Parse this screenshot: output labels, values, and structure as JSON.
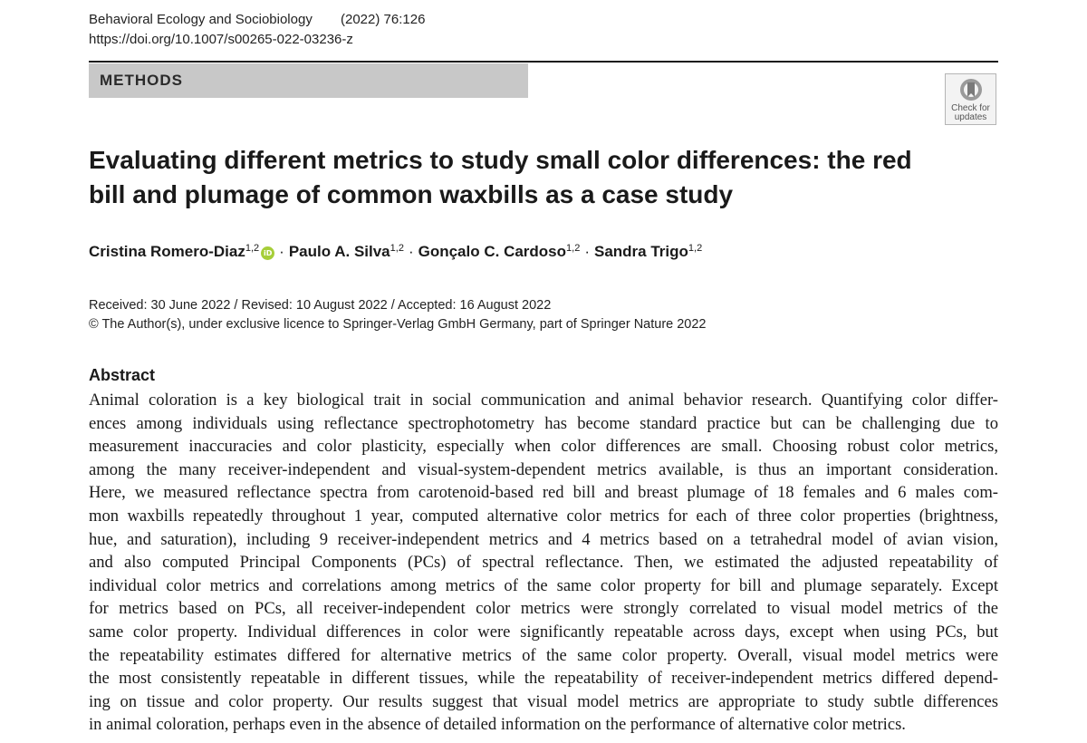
{
  "header": {
    "journal": "Behavioral Ecology and Sociobiology",
    "citation": "(2022) 76:126",
    "doi": "https://doi.org/10.1007/s00265-022-03236-z"
  },
  "section_label": "METHODS",
  "check_updates": {
    "line1": "Check for",
    "line2": "updates"
  },
  "title": {
    "line1": "Evaluating different metrics to study small color differences: the red",
    "line2": "bill and plumage of common waxbills as a case study"
  },
  "authors": [
    {
      "name": "Cristina Romero-Diaz",
      "affil": "1,2"
    },
    {
      "name": "Paulo A. Silva",
      "affil": "1,2"
    },
    {
      "name": "Gonçalo C. Cardoso",
      "affil": "1,2"
    },
    {
      "name": "Sandra Trigo",
      "affil": "1,2"
    }
  ],
  "separator": "·",
  "orcid_icon": "orcid-icon",
  "orcid_label": "iD",
  "dates": "Received: 30 June 2022 / Revised: 10 August 2022 / Accepted: 16 August 2022",
  "copyright": "© The Author(s), under exclusive licence to Springer-Verlag GmbH Germany, part of Springer Nature 2022",
  "abstract": {
    "heading": "Abstract",
    "lines": [
      "Animal coloration is a key biological trait in social communication and animal behavior research. Quantifying color differ-",
      "ences among individuals using reflectance spectrophotometry has become standard practice but can be challenging due to",
      "measurement inaccuracies and color plasticity, especially when color differences are small. Choosing robust color metrics,",
      "among the many receiver-independent and visual-system-dependent metrics available, is thus an important consideration.",
      "Here, we measured reflectance spectra from carotenoid-based red bill and breast plumage of 18 females and 6 males com-",
      "mon waxbills repeatedly throughout 1 year, computed alternative color metrics for each of three color properties (brightness,",
      "hue, and saturation), including 9 receiver-independent metrics and 4 metrics based on a tetrahedral model of avian vision,",
      "and also computed Principal Components (PCs) of spectral reflectance. Then, we estimated the adjusted repeatability of",
      "individual color metrics and correlations among metrics of the same color property for bill and plumage separately. Except",
      "for metrics based on PCs, all receiver-independent color metrics were strongly correlated to visual model metrics of the",
      "same color property. Individual differences in color were significantly repeatable across days, except when using PCs, but",
      "the repeatability estimates differed for alternative metrics of the same color property. Overall, visual model metrics were",
      "the most consistently repeatable in different tissues, while the repeatability of receiver-independent metrics differed depend-",
      "ing on tissue and color property. Our results suggest that visual model metrics are appropriate to study subtle differences",
      "in animal coloration, perhaps even in the absence of detailed information on the performance of alternative color metrics."
    ]
  },
  "colors": {
    "section_bar": "#c8c8c8",
    "orcid": "#a6ce39",
    "rule": "#1a1a1a"
  }
}
